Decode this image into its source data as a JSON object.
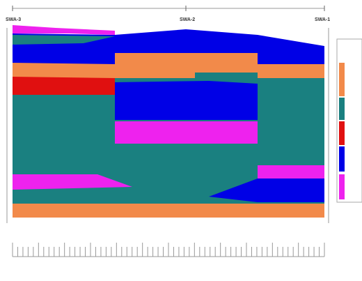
{
  "wells": [
    "SWA-3",
    "SWA-2",
    "SWA-1"
  ]
}
